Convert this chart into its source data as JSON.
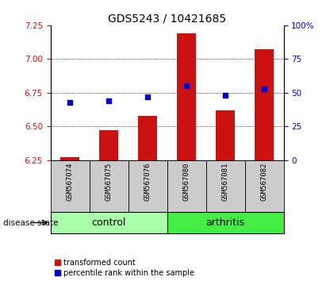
{
  "title": "GDS5243 / 10421685",
  "samples": [
    "GSM567074",
    "GSM567075",
    "GSM567076",
    "GSM567080",
    "GSM567081",
    "GSM567082"
  ],
  "transformed_count": [
    6.27,
    6.47,
    6.58,
    7.19,
    6.62,
    7.07
  ],
  "percentile_rank": [
    43,
    44,
    47,
    55,
    48,
    53
  ],
  "ylim_left": [
    6.25,
    7.25
  ],
  "ylim_right": [
    0,
    100
  ],
  "yticks_left": [
    6.25,
    6.5,
    6.75,
    7.0,
    7.25
  ],
  "yticks_right": [
    0,
    25,
    50,
    75,
    100
  ],
  "bar_color": "#cc1111",
  "dot_color": "#0000cc",
  "control_color": "#aaffaa",
  "arthritis_color": "#44ee44",
  "label_bg_color": "#cccccc",
  "grid_color": "#000000",
  "title_fontsize": 10,
  "tick_fontsize": 7.5,
  "sample_fontsize": 6.5,
  "group_fontsize": 9,
  "legend_fontsize": 7,
  "bar_width": 0.5,
  "dot_size": 18
}
